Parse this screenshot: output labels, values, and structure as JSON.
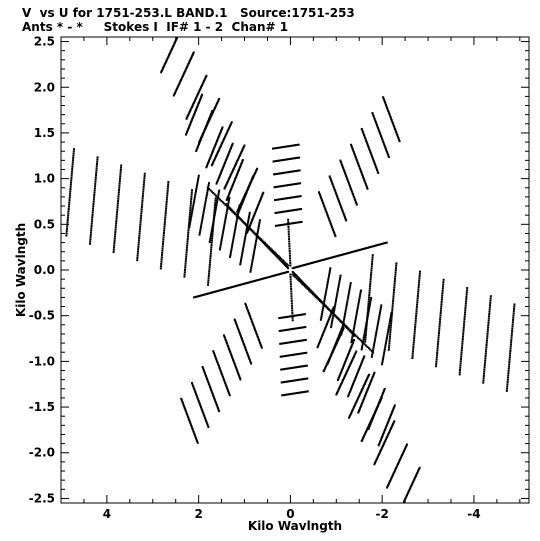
{
  "header": {
    "title_line1": "V  vs U for 1751-253.L BAND.1   Source:1751-253",
    "title_line2": "Ants * - *     Stokes I  IF# 1 - 2  Chan# 1"
  },
  "chart_data": {
    "type": "scatter",
    "title": "V  vs U for 1751-253.L BAND.1   Source:1751-253",
    "subtitle": "Ants * - *     Stokes I  IF# 1 - 2  Chan# 1",
    "xlabel": "Kilo Wavlngth",
    "ylabel": "Kilo Wavlngth",
    "xlim": [
      5.0,
      -5.2
    ],
    "ylim": [
      -2.55,
      2.55
    ],
    "x_ticks": [
      4,
      2,
      0,
      -2,
      -4
    ],
    "x_tick_labels": [
      "4",
      "2",
      "0",
      "-2",
      "-4"
    ],
    "y_ticks": [
      2.5,
      2.0,
      1.5,
      1.0,
      0.5,
      0.0,
      -0.5,
      -1.0,
      -1.5,
      -2.0,
      -2.5
    ],
    "y_tick_labels": [
      "2.5",
      "2.0",
      "1.5",
      "1.0",
      "0.5",
      "0.0",
      "-0.5",
      "-1.0",
      "-1.5",
      "-2.0",
      "-2.5"
    ],
    "grid": false,
    "marker": "dot",
    "point_color": "#000000",
    "tracks": [
      {
        "from": [
          0.05,
          0.05
        ],
        "to": [
          2.6,
          2.4
        ],
        "n": 34,
        "step": 0.08
      },
      {
        "from": [
          0.05,
          0.05
        ],
        "to": [
          2.1,
          1.7
        ],
        "n": 30,
        "step": 0.07
      },
      {
        "from": [
          0.0,
          0.05
        ],
        "to": [
          0.1,
          1.35
        ],
        "n": 20,
        "step": 0.07
      },
      {
        "from": [
          -0.05,
          0.05
        ],
        "to": [
          -2.2,
          1.65
        ],
        "n": 30,
        "step": 0.075
      },
      {
        "from": [
          0.05,
          0.02
        ],
        "to": [
          4.8,
          0.85
        ],
        "n": 40,
        "step": 0.12
      },
      {
        "from": [
          0.05,
          0.0
        ],
        "to": [
          2.1,
          0.75
        ],
        "n": 28,
        "step": 0.075
      },
      {
        "from": [
          -0.05,
          -0.05
        ],
        "to": [
          -2.6,
          -2.4
        ],
        "n": 34,
        "step": 0.08
      },
      {
        "from": [
          -0.05,
          -0.05
        ],
        "to": [
          -2.1,
          -1.7
        ],
        "n": 30,
        "step": 0.07
      },
      {
        "from": [
          0.0,
          -0.05
        ],
        "to": [
          -0.1,
          -1.35
        ],
        "n": 20,
        "step": 0.07
      },
      {
        "from": [
          0.05,
          -0.05
        ],
        "to": [
          2.2,
          -1.65
        ],
        "n": 30,
        "step": 0.075
      },
      {
        "from": [
          -0.05,
          -0.02
        ],
        "to": [
          -4.8,
          -0.85
        ],
        "n": 40,
        "step": 0.12
      },
      {
        "from": [
          -0.05,
          0.0
        ],
        "to": [
          -2.1,
          -0.75
        ],
        "n": 28,
        "step": 0.075
      }
    ],
    "lines": [
      {
        "from": [
          0.05,
          0.02
        ],
        "to": [
          1.4,
          0.72
        ],
        "n": 60
      },
      {
        "from": [
          -0.05,
          -0.02
        ],
        "to": [
          -1.4,
          -0.72
        ],
        "n": 60
      },
      {
        "from": [
          0.05,
          -0.02
        ],
        "to": [
          2.1,
          -0.3
        ],
        "n": 80
      },
      {
        "from": [
          -0.05,
          0.02
        ],
        "to": [
          -2.1,
          0.3
        ],
        "n": 80
      },
      {
        "from": [
          0.0,
          0.05
        ],
        "to": [
          0.05,
          0.55
        ],
        "n": 20
      },
      {
        "from": [
          0.0,
          -0.05
        ],
        "to": [
          -0.05,
          -0.55
        ],
        "n": 20
      },
      {
        "from": [
          -0.05,
          -0.05
        ],
        "to": [
          -1.8,
          -0.9
        ],
        "n": 60
      },
      {
        "from": [
          0.05,
          0.05
        ],
        "to": [
          1.8,
          0.9
        ],
        "n": 60
      }
    ]
  }
}
